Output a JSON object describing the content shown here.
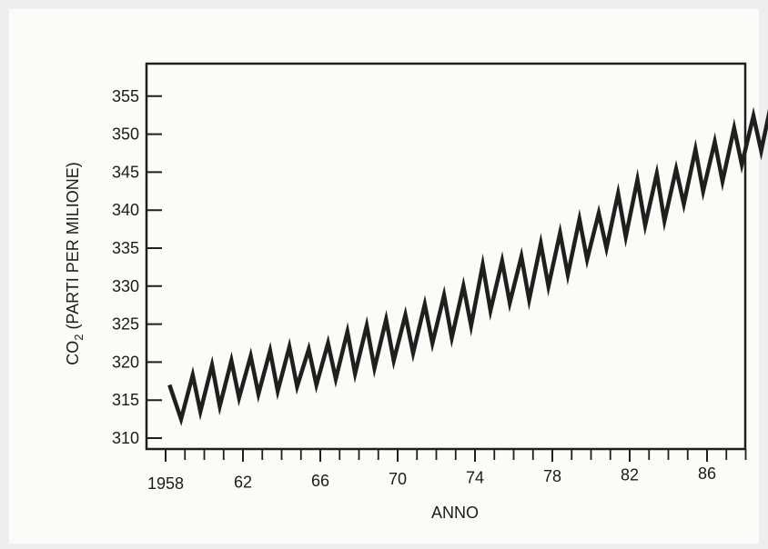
{
  "chart_data": {
    "type": "line",
    "title": "",
    "xlabel": "ANNO",
    "ylabel": "CO2 (PARTI PER MILIONE)",
    "ylabel_main": "CO",
    "ylabel_sub": "2",
    "ylabel_rest": " (PARTI PER MILIONE)",
    "ylim": [
      310,
      355
    ],
    "xlim": [
      1958,
      1989
    ],
    "y_ticks": [
      310,
      315,
      320,
      325,
      330,
      335,
      340,
      345,
      350,
      355
    ],
    "y_tick_labels": [
      "310",
      "315",
      "320",
      "325",
      "330",
      "335",
      "340",
      "345",
      "350",
      "355"
    ],
    "x_ticks": [
      1958,
      1962,
      1966,
      1970,
      1974,
      1978,
      1982,
      1986
    ],
    "x_tick_labels": [
      "1958",
      "62",
      "66",
      "70",
      "74",
      "78",
      "82",
      "86"
    ],
    "x_minor_ticks": [
      1959,
      1960,
      1961,
      1963,
      1964,
      1965,
      1967,
      1968,
      1969,
      1971,
      1972,
      1973,
      1975,
      1976,
      1977,
      1979,
      1980,
      1981,
      1983,
      1984,
      1985,
      1987,
      1988
    ],
    "grid": false,
    "series": [
      {
        "color": "#1f1f1f",
        "points": [
          [
            1958.2,
            317.0
          ],
          [
            1958.4,
            315.5
          ],
          [
            1958.8,
            312.5
          ],
          [
            1959.4,
            318.3
          ],
          [
            1959.8,
            313.5
          ],
          [
            1960.4,
            319.6
          ],
          [
            1960.8,
            314.2
          ],
          [
            1961.4,
            320.2
          ],
          [
            1961.8,
            315.3
          ],
          [
            1962.4,
            320.8
          ],
          [
            1962.8,
            315.8
          ],
          [
            1963.4,
            321.5
          ],
          [
            1963.8,
            316.2
          ],
          [
            1964.4,
            322.0
          ],
          [
            1964.8,
            316.8
          ],
          [
            1965.4,
            321.7
          ],
          [
            1965.8,
            317.0
          ],
          [
            1966.4,
            322.5
          ],
          [
            1966.8,
            317.8
          ],
          [
            1967.4,
            324.0
          ],
          [
            1967.8,
            318.5
          ],
          [
            1968.4,
            324.8
          ],
          [
            1968.8,
            319.2
          ],
          [
            1969.4,
            325.6
          ],
          [
            1969.8,
            320.2
          ],
          [
            1970.4,
            326.2
          ],
          [
            1970.8,
            321.2
          ],
          [
            1971.4,
            327.6
          ],
          [
            1971.8,
            322.5
          ],
          [
            1972.4,
            328.8
          ],
          [
            1972.8,
            323.2
          ],
          [
            1973.4,
            330.0
          ],
          [
            1973.8,
            324.8
          ],
          [
            1974.4,
            332.8
          ],
          [
            1974.8,
            326.8
          ],
          [
            1975.4,
            333.3
          ],
          [
            1975.8,
            327.8
          ],
          [
            1976.4,
            333.9
          ],
          [
            1976.8,
            328.2
          ],
          [
            1977.4,
            335.6
          ],
          [
            1977.8,
            330.0
          ],
          [
            1978.4,
            337.0
          ],
          [
            1978.8,
            331.5
          ],
          [
            1979.4,
            338.8
          ],
          [
            1979.8,
            333.5
          ],
          [
            1980.4,
            339.6
          ],
          [
            1980.8,
            335.0
          ],
          [
            1981.4,
            342.2
          ],
          [
            1981.8,
            336.5
          ],
          [
            1982.4,
            344.0
          ],
          [
            1982.8,
            338.0
          ],
          [
            1983.4,
            344.8
          ],
          [
            1983.8,
            338.6
          ],
          [
            1984.4,
            345.4
          ],
          [
            1984.8,
            340.8
          ],
          [
            1985.4,
            348.0
          ],
          [
            1985.8,
            342.5
          ],
          [
            1986.4,
            349.0
          ],
          [
            1986.8,
            343.8
          ],
          [
            1987.4,
            350.8
          ],
          [
            1987.8,
            346.0
          ],
          [
            1988.4,
            352.4
          ],
          [
            1988.8,
            347.8
          ],
          [
            1989.3,
            353.8
          ]
        ]
      }
    ]
  }
}
